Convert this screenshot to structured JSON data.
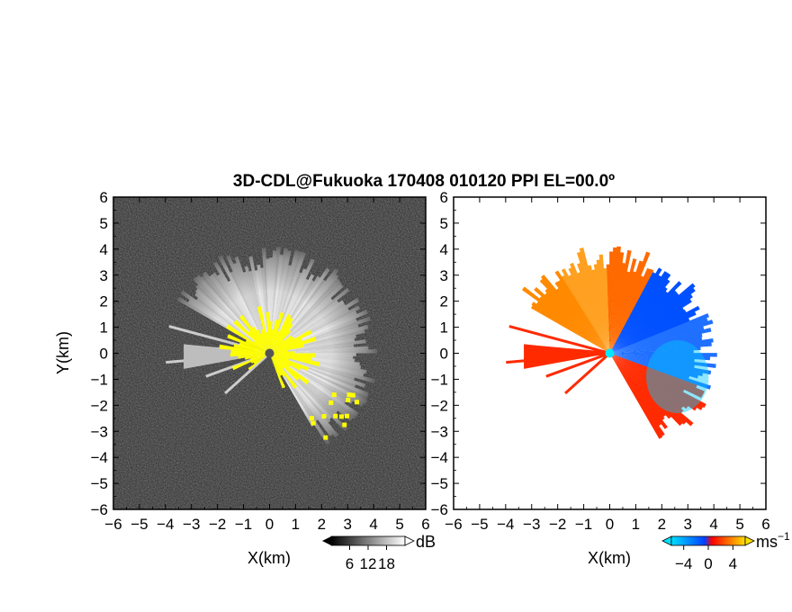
{
  "title": "3D-CDL@Fukuoka 170408 010120 PPI EL=00.0º",
  "colors": {
    "background_dark": "#2a2a2a",
    "reflectivity_echo": "#d8d8d8",
    "flag_yellow": "#ffff00",
    "velocity_positive": "#ff8a00",
    "velocity_positive_strong": "#ff2a00",
    "velocity_negative": "#0050ff",
    "velocity_negative_light": "#00c8ff",
    "radar_site": "#00e8ff"
  },
  "chart_data": [
    {
      "type": "heatmap",
      "name": "reflectivity-ppi",
      "xlabel": "X(km)",
      "ylabel": "Y(km)",
      "xlim": [
        -6,
        6
      ],
      "ylim": [
        -6,
        6
      ],
      "xticks": [
        "−6",
        "−5",
        "−4",
        "−3",
        "−2",
        "−1",
        "0",
        "1",
        "2",
        "3",
        "4",
        "5",
        "6"
      ],
      "yticks": [
        "6",
        "5",
        "4",
        "3",
        "2",
        "1",
        "0",
        "−1",
        "−2",
        "−3",
        "−4",
        "−5",
        "−6"
      ],
      "colorbar": {
        "unit": "dB",
        "tick_labels": [
          "6",
          "12",
          "18"
        ],
        "ticks": [
          6,
          12,
          18
        ],
        "range": [
          0,
          24
        ],
        "colors": [
          "#000000",
          "#ffffff"
        ]
      },
      "echo_sector_deg": [
        -60,
        150
      ],
      "echo_max_range_km": 4.2,
      "flag_max_range_km": 2.0
    },
    {
      "type": "heatmap",
      "name": "doppler-velocity-ppi",
      "xlabel": "X(km)",
      "ylabel": "Y(km)",
      "xlim": [
        -6,
        6
      ],
      "ylim": [
        -6,
        6
      ],
      "xticks": [
        "−6",
        "−5",
        "−4",
        "−3",
        "−2",
        "−1",
        "0",
        "1",
        "2",
        "3",
        "4",
        "5",
        "6"
      ],
      "yticks": [
        "6",
        "5",
        "4",
        "3",
        "2",
        "1",
        "0",
        "−1",
        "−2",
        "−3",
        "−4",
        "−5",
        "−6"
      ],
      "colorbar": {
        "unit": "ms",
        "unit_exponent": "−1",
        "tick_labels": [
          "−4",
          "0",
          "4"
        ],
        "ticks": [
          -4,
          0,
          4
        ],
        "range": [
          -6,
          6
        ],
        "colors": [
          "#00e0ff",
          "#0040ff",
          "#ff0000",
          "#ffe000"
        ]
      },
      "echo_sector_deg": [
        -60,
        150
      ],
      "echo_max_range_km": 4.2
    }
  ]
}
